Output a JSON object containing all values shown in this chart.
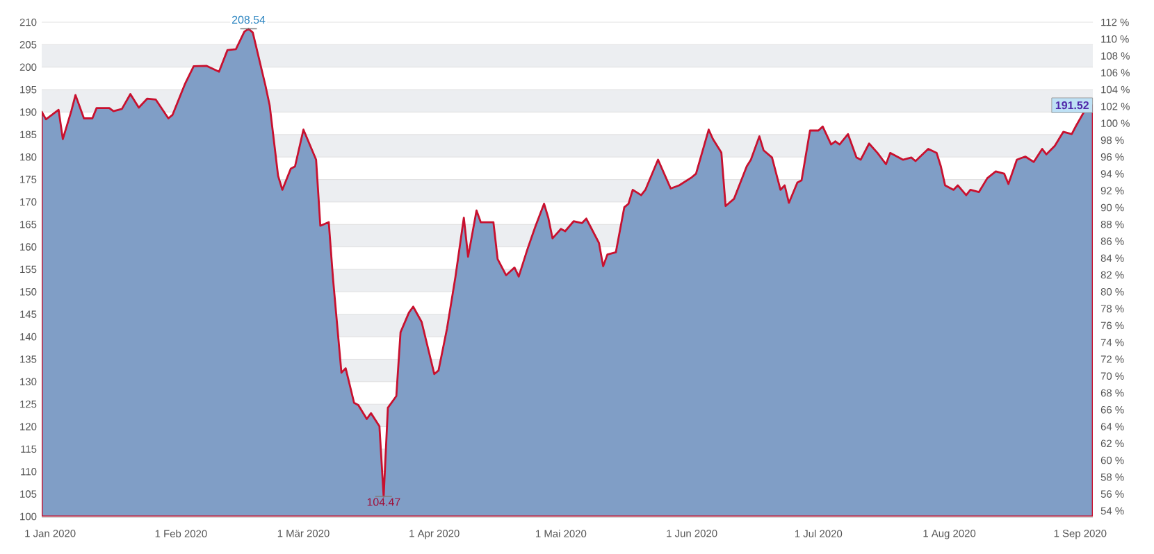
{
  "chart_data": {
    "type": "area",
    "color": "#809ec6",
    "grid": "y",
    "x": [
      "2019-12-30",
      "2019-12-31",
      "2020-01-03",
      "2020-01-04",
      "2020-01-06",
      "2020-01-07",
      "2020-01-09",
      "2020-01-11",
      "2020-01-12",
      "2020-01-15",
      "2020-01-16",
      "2020-01-18",
      "2020-01-20",
      "2020-01-22",
      "2020-01-24",
      "2020-01-26",
      "2020-01-29",
      "2020-01-30",
      "2020-02-02",
      "2020-02-04",
      "2020-02-07",
      "2020-02-10",
      "2020-02-12",
      "2020-02-14",
      "2020-02-16",
      "2020-02-17",
      "2020-02-18",
      "2020-02-21",
      "2020-02-22",
      "2020-02-24",
      "2020-02-25",
      "2020-02-27",
      "2020-02-28",
      "2020-03-01",
      "2020-03-04",
      "2020-03-05",
      "2020-03-07",
      "2020-03-08",
      "2020-03-10",
      "2020-03-11",
      "2020-03-13",
      "2020-03-14",
      "2020-03-16",
      "2020-03-17",
      "2020-03-19",
      "2020-03-20",
      "2020-03-21",
      "2020-03-23",
      "2020-03-24",
      "2020-03-26",
      "2020-03-27",
      "2020-03-29",
      "2020-04-01",
      "2020-04-02",
      "2020-04-04",
      "2020-04-06",
      "2020-04-08",
      "2020-04-09",
      "2020-04-11",
      "2020-04-12",
      "2020-04-15",
      "2020-04-16",
      "2020-04-18",
      "2020-04-20",
      "2020-04-21",
      "2020-04-23",
      "2020-04-25",
      "2020-04-27",
      "2020-04-28",
      "2020-04-29",
      "2020-05-01",
      "2020-05-02",
      "2020-05-04",
      "2020-05-06",
      "2020-05-07",
      "2020-05-08",
      "2020-05-10",
      "2020-05-11",
      "2020-05-12",
      "2020-05-14",
      "2020-05-16",
      "2020-05-17",
      "2020-05-18",
      "2020-05-20",
      "2020-05-21",
      "2020-05-24",
      "2020-05-27",
      "2020-05-29",
      "2020-06-01",
      "2020-06-02",
      "2020-06-05",
      "2020-06-06",
      "2020-06-08",
      "2020-06-09",
      "2020-06-11",
      "2020-06-14",
      "2020-06-15",
      "2020-06-17",
      "2020-06-18",
      "2020-06-20",
      "2020-06-22",
      "2020-06-23",
      "2020-06-24",
      "2020-06-26",
      "2020-06-27",
      "2020-06-29",
      "2020-07-01",
      "2020-07-02",
      "2020-07-04",
      "2020-07-05",
      "2020-07-06",
      "2020-07-08",
      "2020-07-10",
      "2020-07-11",
      "2020-07-13",
      "2020-07-15",
      "2020-07-17",
      "2020-07-18",
      "2020-07-21",
      "2020-07-23",
      "2020-07-24",
      "2020-07-27",
      "2020-07-29",
      "2020-07-30",
      "2020-07-31",
      "2020-08-02",
      "2020-08-03",
      "2020-08-05",
      "2020-08-06",
      "2020-08-08",
      "2020-08-10",
      "2020-08-12",
      "2020-08-14",
      "2020-08-15",
      "2020-08-17",
      "2020-08-19",
      "2020-08-21",
      "2020-08-23",
      "2020-08-24",
      "2020-08-26",
      "2020-08-28",
      "2020-08-30",
      "2020-08-31",
      "2020-09-02",
      "2020-09-04"
    ],
    "values": [
      190.1,
      188.4,
      190.5,
      184.0,
      190.2,
      193.8,
      188.6,
      188.6,
      190.9,
      190.9,
      190.2,
      190.7,
      194.0,
      191.0,
      193.0,
      192.8,
      188.6,
      189.4,
      196.4,
      200.2,
      200.3,
      199.0,
      203.8,
      204.0,
      207.9,
      208.54,
      207.7,
      195.9,
      191.5,
      175.8,
      172.7,
      177.4,
      177.9,
      186.1,
      179.4,
      164.7,
      165.5,
      153.0,
      132.0,
      133.0,
      125.3,
      124.8,
      121.7,
      123.0,
      120.1,
      104.47,
      124.2,
      126.8,
      141.0,
      145.4,
      146.7,
      143.3,
      131.7,
      132.5,
      141.8,
      153.3,
      166.5,
      157.8,
      168.1,
      165.5,
      165.5,
      157.3,
      153.7,
      155.4,
      153.4,
      159.3,
      164.7,
      169.6,
      166.5,
      161.9,
      164.0,
      163.5,
      165.7,
      165.3,
      166.3,
      164.5,
      160.9,
      155.7,
      158.3,
      158.8,
      168.8,
      169.6,
      172.7,
      171.5,
      172.7,
      179.4,
      173.0,
      173.7,
      175.5,
      176.3,
      186.1,
      184.0,
      181.0,
      169.1,
      170.7,
      177.9,
      179.4,
      184.6,
      181.5,
      179.9,
      172.7,
      173.7,
      169.8,
      174.3,
      174.8,
      185.9,
      185.9,
      186.8,
      182.8,
      183.5,
      182.8,
      185.1,
      179.9,
      179.4,
      183.0,
      180.9,
      178.4,
      180.9,
      179.4,
      179.9,
      179.1,
      181.8,
      180.9,
      177.9,
      173.7,
      172.7,
      173.7,
      171.5,
      172.7,
      172.2,
      175.3,
      176.8,
      176.3,
      174.0,
      179.4,
      180.1,
      178.9,
      181.8,
      180.6,
      182.5,
      185.6,
      185.1,
      186.9,
      190.2,
      191.52
    ],
    "xlim": [
      "2019-12-30",
      "2020-09-04"
    ],
    "xticks": [
      {
        "value": "2020-01-01",
        "label": "1 Jan 2020"
      },
      {
        "value": "2020-02-01",
        "label": "1 Feb 2020"
      },
      {
        "value": "2020-03-01",
        "label": "1 Mär 2020"
      },
      {
        "value": "2020-04-01",
        "label": "1 Apr 2020"
      },
      {
        "value": "2020-05-01",
        "label": "1 Mai 2020"
      },
      {
        "value": "2020-06-01",
        "label": "1 Jun 2020"
      },
      {
        "value": "2020-07-01",
        "label": "1 Jul 2020"
      },
      {
        "value": "2020-08-01",
        "label": "1 Aug 2020"
      },
      {
        "value": "2020-09-01",
        "label": "1 Sep 2020"
      }
    ],
    "ylim": [
      100,
      210
    ],
    "yticks": [
      100,
      105,
      110,
      115,
      120,
      125,
      130,
      135,
      140,
      145,
      150,
      155,
      160,
      165,
      170,
      175,
      180,
      185,
      190,
      195,
      200,
      205,
      210
    ],
    "y2lim": [
      53.33,
      112
    ],
    "y2ticks": [
      {
        "value": 54,
        "label": "54 %"
      },
      {
        "value": 56,
        "label": "56 %"
      },
      {
        "value": 58,
        "label": "58 %"
      },
      {
        "value": 60,
        "label": "60 %"
      },
      {
        "value": 62,
        "label": "62 %"
      },
      {
        "value": 64,
        "label": "64 %"
      },
      {
        "value": 66,
        "label": "66 %"
      },
      {
        "value": 68,
        "label": "68 %"
      },
      {
        "value": 70,
        "label": "70 %"
      },
      {
        "value": 72,
        "label": "72 %"
      },
      {
        "value": 74,
        "label": "74 %"
      },
      {
        "value": 76,
        "label": "76 %"
      },
      {
        "value": 78,
        "label": "78 %"
      },
      {
        "value": 80,
        "label": "80 %"
      },
      {
        "value": 82,
        "label": "82 %"
      },
      {
        "value": 84,
        "label": "84 %"
      },
      {
        "value": 86,
        "label": "86 %"
      },
      {
        "value": 88,
        "label": "88 %"
      },
      {
        "value": 90,
        "label": "90 %"
      },
      {
        "value": 92,
        "label": "92 %"
      },
      {
        "value": 94,
        "label": "94 %"
      },
      {
        "value": 96,
        "label": "96 %"
      },
      {
        "value": 98,
        "label": "98 %"
      },
      {
        "value": 100,
        "label": "100 %"
      },
      {
        "value": 102,
        "label": "102 %"
      },
      {
        "value": 104,
        "label": "104 %"
      },
      {
        "value": 106,
        "label": "106 %"
      },
      {
        "value": 108,
        "label": "108 %"
      },
      {
        "value": 110,
        "label": "110 %"
      },
      {
        "value": 112,
        "label": "112 %"
      }
    ],
    "annotations": [
      {
        "text": "208.54",
        "x": "2020-02-17",
        "y": 208.54
      },
      {
        "text": "104.47",
        "x": "2020-03-20",
        "y": 104.47
      },
      {
        "text": "191.52",
        "x": "2020-09-04",
        "y": 191.52
      }
    ]
  }
}
